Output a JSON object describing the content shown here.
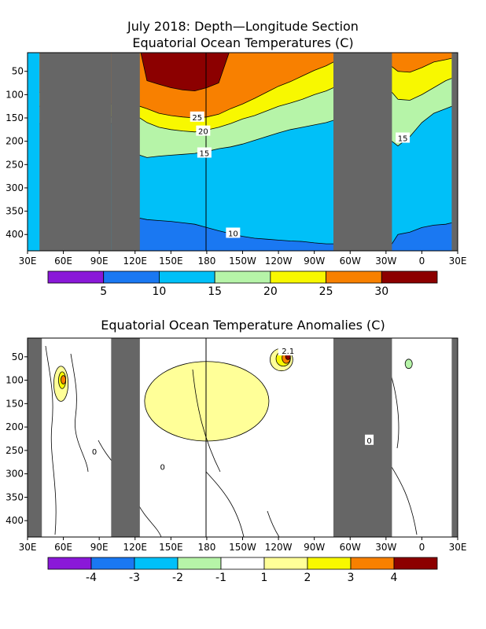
{
  "chart_data": [
    {
      "type": "heatmap",
      "title": "July 2018: Depth—Longitude Section",
      "subtitle": "Equatorial Ocean Temperatures (C)",
      "x_tick_labels": [
        "30E",
        "60E",
        "90E",
        "120E",
        "150E",
        "180",
        "150W",
        "120W",
        "90W",
        "60W",
        "30W",
        "0",
        "30E"
      ],
      "xlim": [
        30,
        390
      ],
      "y_tick_labels": [
        "50",
        "100",
        "150",
        "200",
        "250",
        "300",
        "350",
        "400"
      ],
      "y_ticks": [
        50,
        100,
        150,
        200,
        250,
        300,
        350,
        400
      ],
      "ylim": [
        10,
        435
      ],
      "y_reversed": true,
      "land_masks": [
        [
          40,
          100
        ],
        [
          100,
          124
        ],
        [
          286,
          335
        ],
        [
          385,
          390
        ]
      ],
      "colorbar_levels": [
        "5",
        "10",
        "15",
        "20",
        "25",
        "30"
      ],
      "colorbar_colors": [
        "#8a18d8",
        "#1a78f2",
        "#00c0f8",
        "#b6f4a8",
        "#f8f800",
        "#f88000",
        "#8c0000"
      ],
      "contour_labels": [
        {
          "text": "25",
          "lon": 172,
          "depth": 148
        },
        {
          "text": "20",
          "lon": 177,
          "depth": 178
        },
        {
          "text": "15",
          "lon": 178,
          "depth": 225
        },
        {
          "text": "15",
          "lon": 344,
          "depth": 193
        },
        {
          "text": "10",
          "lon": 202,
          "depth": 397
        }
      ],
      "isotherm_depths": {
        "lon": [
          40,
          50,
          60,
          70,
          80,
          90,
          100,
          124,
          130,
          140,
          150,
          160,
          170,
          180,
          190,
          200,
          210,
          220,
          230,
          240,
          250,
          260,
          270,
          280,
          286,
          335,
          340,
          350,
          360,
          370,
          380,
          385
        ],
        "t30": [
          0,
          70,
          65,
          62,
          60,
          50,
          0,
          0,
          70,
          78,
          85,
          90,
          92,
          85,
          75,
          0,
          0,
          0,
          0,
          0,
          0,
          0,
          0,
          0,
          0,
          0,
          0,
          0,
          0,
          0,
          0,
          0
        ],
        "t25": [
          95,
          98,
          102,
          108,
          112,
          118,
          120,
          125,
          130,
          140,
          145,
          148,
          150,
          148,
          142,
          130,
          120,
          108,
          95,
          82,
          72,
          60,
          48,
          38,
          30,
          40,
          50,
          52,
          42,
          30,
          25,
          22
        ],
        "t20": [
          125,
          128,
          130,
          135,
          140,
          145,
          148,
          150,
          160,
          170,
          175,
          178,
          180,
          176,
          170,
          162,
          152,
          145,
          135,
          125,
          118,
          110,
          100,
          92,
          85,
          95,
          110,
          112,
          100,
          85,
          70,
          65
        ],
        "t15": [
          162,
          162,
          162,
          162,
          162,
          162,
          162,
          230,
          235,
          232,
          230,
          228,
          226,
          222,
          216,
          212,
          206,
          198,
          190,
          182,
          175,
          170,
          165,
          160,
          155,
          200,
          210,
          190,
          160,
          140,
          130,
          125
        ],
        "t10": [
          500,
          500,
          500,
          500,
          500,
          500,
          500,
          365,
          368,
          370,
          372,
          375,
          378,
          385,
          392,
          398,
          404,
          408,
          410,
          412,
          414,
          415,
          418,
          420,
          420,
          420,
          400,
          395,
          385,
          380,
          378,
          375
        ]
      }
    },
    {
      "type": "heatmap",
      "title": "Equatorial Ocean Temperature Anomalies (C)",
      "x_tick_labels": [
        "30E",
        "60E",
        "90E",
        "120E",
        "150E",
        "180",
        "150W",
        "120W",
        "90W",
        "60W",
        "30W",
        "0",
        "30E"
      ],
      "xlim": [
        30,
        390
      ],
      "y_tick_labels": [
        "50",
        "100",
        "150",
        "200",
        "250",
        "300",
        "350",
        "400"
      ],
      "y_ticks": [
        50,
        100,
        150,
        200,
        250,
        300,
        350,
        400
      ],
      "ylim": [
        10,
        435
      ],
      "y_reversed": true,
      "land_masks": [
        [
          30,
          42
        ],
        [
          100,
          124
        ],
        [
          286,
          335
        ],
        [
          385,
          390
        ]
      ],
      "colorbar_levels": [
        "-4",
        "-3",
        "-2",
        "-1",
        "1",
        "2",
        "3",
        "4"
      ],
      "colorbar_colors": [
        "#8a18d8",
        "#1a78f2",
        "#00c0f8",
        "#b6f4a8",
        "#ffffff",
        "#ffff98",
        "#f8f800",
        "#f88000",
        "#8c0000"
      ],
      "contour_labels": [
        {
          "text": "2.1",
          "lon": 248,
          "depth": 37
        },
        {
          "text": "0",
          "lon": 86,
          "depth": 252
        },
        {
          "text": "0",
          "lon": 143,
          "depth": 285
        },
        {
          "text": "0",
          "lon": 316,
          "depth": 228
        }
      ],
      "anomaly_regions": [
        {
          "level": 1,
          "lon": [
            233,
            252
          ],
          "depth": [
            32,
            80
          ]
        },
        {
          "level": 2,
          "lon": [
            238,
            250
          ],
          "depth": [
            38,
            70
          ]
        },
        {
          "level": 3,
          "lon": [
            243,
            250
          ],
          "depth": [
            40,
            64
          ]
        },
        {
          "level": 4,
          "lon": [
            246,
            250
          ],
          "depth": [
            44,
            56
          ]
        },
        {
          "level": 1,
          "lon": [
            52,
            64
          ],
          "depth": [
            70,
            145
          ]
        },
        {
          "level": 2,
          "lon": [
            56,
            62
          ],
          "depth": [
            82,
            118
          ]
        },
        {
          "level": 3,
          "lon": [
            58,
            62
          ],
          "depth": [
            90,
            108
          ]
        },
        {
          "level": 1,
          "lon": [
            128,
            232
          ],
          "depth": [
            60,
            230
          ]
        },
        {
          "level": -1,
          "lon": [
            346,
            352
          ],
          "depth": [
            55,
            75
          ]
        }
      ]
    }
  ]
}
